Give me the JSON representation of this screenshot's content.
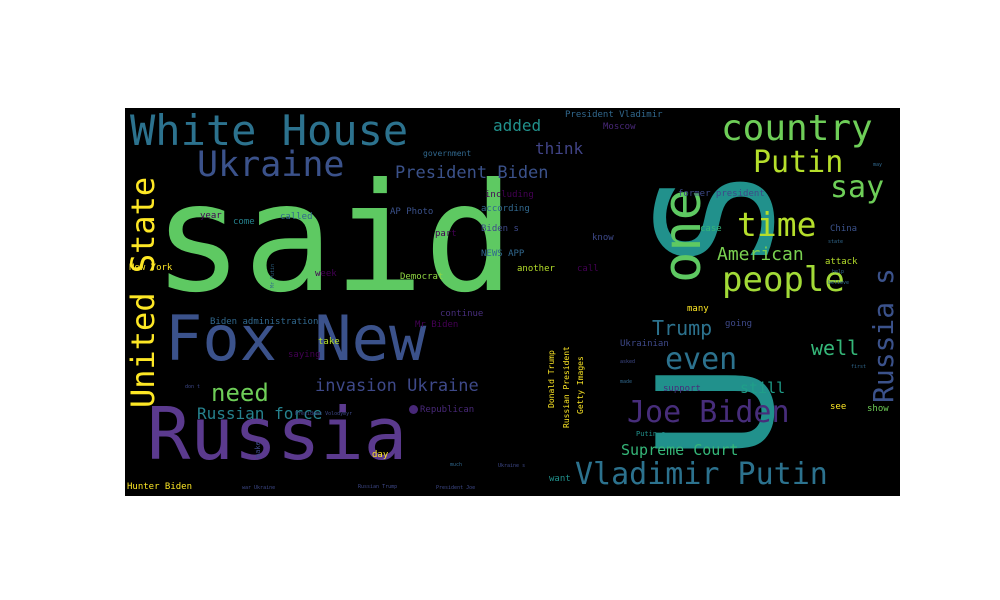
{
  "chart_data": {
    "type": "wordcloud",
    "background": "#000000",
    "words": [
      {
        "text": "said",
        "weight": 100,
        "color": "#5ec962",
        "orient": "h"
      },
      {
        "text": "U S",
        "weight": 98,
        "color": "#21918c",
        "orient": "v"
      },
      {
        "text": "Fox New",
        "weight": 60,
        "color": "#3b528b",
        "orient": "h"
      },
      {
        "text": "Russia",
        "weight": 58,
        "color": "#5b3a8e",
        "orient": "h"
      },
      {
        "text": "one",
        "weight": 48,
        "color": "#5ec962",
        "orient": "v"
      },
      {
        "text": "White House",
        "weight": 40,
        "color": "#2c728e",
        "orient": "h"
      },
      {
        "text": "Ukraine",
        "weight": 34,
        "color": "#3b528b",
        "orient": "h"
      },
      {
        "text": "United State",
        "weight": 32,
        "color": "#fde725",
        "orient": "v"
      },
      {
        "text": "country",
        "weight": 33,
        "color": "#6ece58",
        "orient": "h"
      },
      {
        "text": "Vladimir Putin",
        "weight": 30,
        "color": "#2c728e",
        "orient": "h"
      },
      {
        "text": "Joe Biden",
        "weight": 30,
        "color": "#472d7b",
        "orient": "h"
      },
      {
        "text": "people",
        "weight": 30,
        "color": "#a2da37",
        "orient": "h"
      },
      {
        "text": "time",
        "weight": 30,
        "color": "#b5de2b",
        "orient": "h"
      },
      {
        "text": "Russia s",
        "weight": 30,
        "color": "#3b528b",
        "orient": "v"
      },
      {
        "text": "say",
        "weight": 28,
        "color": "#6ece58",
        "orient": "h"
      },
      {
        "text": "Putin",
        "weight": 28,
        "color": "#b5de2b",
        "orient": "h"
      },
      {
        "text": "even",
        "weight": 28,
        "color": "#2c728e",
        "orient": "h"
      },
      {
        "text": "need",
        "weight": 22,
        "color": "#6ece58",
        "orient": "h"
      },
      {
        "text": "Trump",
        "weight": 18,
        "color": "#2c728e",
        "orient": "h"
      },
      {
        "text": "well",
        "weight": 18,
        "color": "#35b779",
        "orient": "h"
      },
      {
        "text": "American",
        "weight": 17,
        "color": "#7ad151",
        "orient": "h"
      },
      {
        "text": "President Biden",
        "weight": 17,
        "color": "#3b528b",
        "orient": "h"
      },
      {
        "text": "invasion Ukraine",
        "weight": 17,
        "color": "#3e4989",
        "orient": "h"
      },
      {
        "text": "Russian force",
        "weight": 16,
        "color": "#26828e",
        "orient": "h"
      },
      {
        "text": "Supreme Court",
        "weight": 15,
        "color": "#35b779",
        "orient": "h"
      },
      {
        "text": "added",
        "weight": 15,
        "color": "#21918c",
        "orient": "h"
      },
      {
        "text": "think",
        "weight": 15,
        "color": "#414487",
        "orient": "h"
      },
      {
        "text": "still",
        "weight": 15,
        "color": "#1f9e89",
        "orient": "h"
      },
      {
        "text": "President Vladimir",
        "weight": 9,
        "color": "#31688e",
        "orient": "h"
      },
      {
        "text": "Moscow",
        "weight": 9,
        "color": "#482878",
        "orient": "h"
      },
      {
        "text": "including",
        "weight": 9,
        "color": "#440154",
        "orient": "h"
      },
      {
        "text": "according",
        "weight": 9,
        "color": "#31688e",
        "orient": "h"
      },
      {
        "text": "former president",
        "weight": 9,
        "color": "#3e4989",
        "orient": "h"
      },
      {
        "text": "AP Photo",
        "weight": 9,
        "color": "#3b528b",
        "orient": "h"
      },
      {
        "text": "government",
        "weight": 9,
        "color": "#31688e",
        "orient": "h"
      },
      {
        "text": "year",
        "weight": 9,
        "color": "#440154",
        "orient": "h"
      },
      {
        "text": "come",
        "weight": 9,
        "color": "#26828e",
        "orient": "h"
      },
      {
        "text": "called",
        "weight": 9,
        "color": "#31688e",
        "orient": "h"
      },
      {
        "text": "case",
        "weight": 9,
        "color": "#35b779",
        "orient": "h"
      },
      {
        "text": "China",
        "weight": 9,
        "color": "#3b528b",
        "orient": "h"
      },
      {
        "text": "Biden s",
        "weight": 9,
        "color": "#3e4989",
        "orient": "h"
      },
      {
        "text": "know",
        "weight": 9,
        "color": "#3e4989",
        "orient": "h"
      },
      {
        "text": "part",
        "weight": 9,
        "color": "#440154",
        "orient": "h"
      },
      {
        "text": "NEWS APP",
        "weight": 9,
        "color": "#31688e",
        "orient": "h"
      },
      {
        "text": "another",
        "weight": 9,
        "color": "#b5de2b",
        "orient": "h"
      },
      {
        "text": "call",
        "weight": 9,
        "color": "#440154",
        "orient": "h"
      },
      {
        "text": "week",
        "weight": 9,
        "color": "#440154",
        "orient": "h"
      },
      {
        "text": "Democrat",
        "weight": 9,
        "color": "#90d743",
        "orient": "h"
      },
      {
        "text": "attack",
        "weight": 9,
        "color": "#b5de2b",
        "orient": "h"
      },
      {
        "text": "New York",
        "weight": 9,
        "color": "#fde725",
        "orient": "h"
      },
      {
        "text": "many",
        "weight": 9,
        "color": "#fde725",
        "orient": "h"
      },
      {
        "text": "going",
        "weight": 9,
        "color": "#3e4989",
        "orient": "h"
      },
      {
        "text": "Biden administration",
        "weight": 9,
        "color": "#31688e",
        "orient": "h"
      },
      {
        "text": "continue",
        "weight": 9,
        "color": "#472d7b",
        "orient": "h"
      },
      {
        "text": "Mr Biden",
        "weight": 9,
        "color": "#440154",
        "orient": "h"
      },
      {
        "text": "take",
        "weight": 9,
        "color": "#b5de2b",
        "orient": "h"
      },
      {
        "text": "saying",
        "weight": 9,
        "color": "#440154",
        "orient": "h"
      },
      {
        "text": "Ukrainian",
        "weight": 9,
        "color": "#3e4989",
        "orient": "h"
      },
      {
        "text": "support",
        "weight": 9,
        "color": "#472d7b",
        "orient": "h"
      },
      {
        "text": "show",
        "weight": 9,
        "color": "#6ece58",
        "orient": "h"
      },
      {
        "text": "see",
        "weight": 9,
        "color": "#fde725",
        "orient": "h"
      },
      {
        "text": "Republican",
        "weight": 9,
        "color": "#482878",
        "orient": "h"
      },
      {
        "text": "Putin s",
        "weight": 7,
        "color": "#21918c",
        "orient": "h"
      },
      {
        "text": "day",
        "weight": 9,
        "color": "#fde725",
        "orient": "h"
      },
      {
        "text": "want",
        "weight": 9,
        "color": "#21918c",
        "orient": "h"
      },
      {
        "text": "Hunter Biden",
        "weight": 9,
        "color": "#fde725",
        "orient": "h"
      },
      {
        "text": "Donald Trump",
        "weight": 8,
        "color": "#fde725",
        "orient": "v"
      },
      {
        "text": "Russian President",
        "weight": 8,
        "color": "#fde725",
        "orient": "v"
      },
      {
        "text": "Getty Images",
        "weight": 8,
        "color": "#fde725",
        "orient": "v"
      },
      {
        "text": "make",
        "weight": 7,
        "color": "#3e4989",
        "orient": "v"
      },
      {
        "text": "President Volodymyr",
        "weight": 5,
        "color": "#3e4989",
        "orient": "h"
      },
      {
        "text": "war Ukraine",
        "weight": 5,
        "color": "#3e4989",
        "orient": "h"
      },
      {
        "text": "Russian Trump",
        "weight": 5,
        "color": "#3e4989",
        "orient": "h"
      },
      {
        "text": "President Joe",
        "weight": 5,
        "color": "#3e4989",
        "orient": "h"
      },
      {
        "text": "Ukraine s",
        "weight": 5,
        "color": "#3e4989",
        "orient": "h"
      },
      {
        "text": "much",
        "weight": 5,
        "color": "#31688e",
        "orient": "h"
      },
      {
        "text": "don t",
        "weight": 5,
        "color": "#3e4989",
        "orient": "h"
      },
      {
        "text": "asked",
        "weight": 5,
        "color": "#3e4989",
        "orient": "h"
      },
      {
        "text": "made",
        "weight": 5,
        "color": "#31688e",
        "orient": "h"
      },
      {
        "text": "Mr Putin",
        "weight": 5,
        "color": "#31688e",
        "orient": "v"
      },
      {
        "text": "may",
        "weight": 5,
        "color": "#31688e",
        "orient": "h"
      },
      {
        "text": "first",
        "weight": 5,
        "color": "#31688e",
        "orient": "h"
      },
      {
        "text": "believe",
        "weight": 5,
        "color": "#31688e",
        "orient": "h"
      },
      {
        "text": "help",
        "weight": 5,
        "color": "#31688e",
        "orient": "h"
      },
      {
        "text": "state",
        "weight": 5,
        "color": "#31688e",
        "orient": "h"
      }
    ]
  }
}
